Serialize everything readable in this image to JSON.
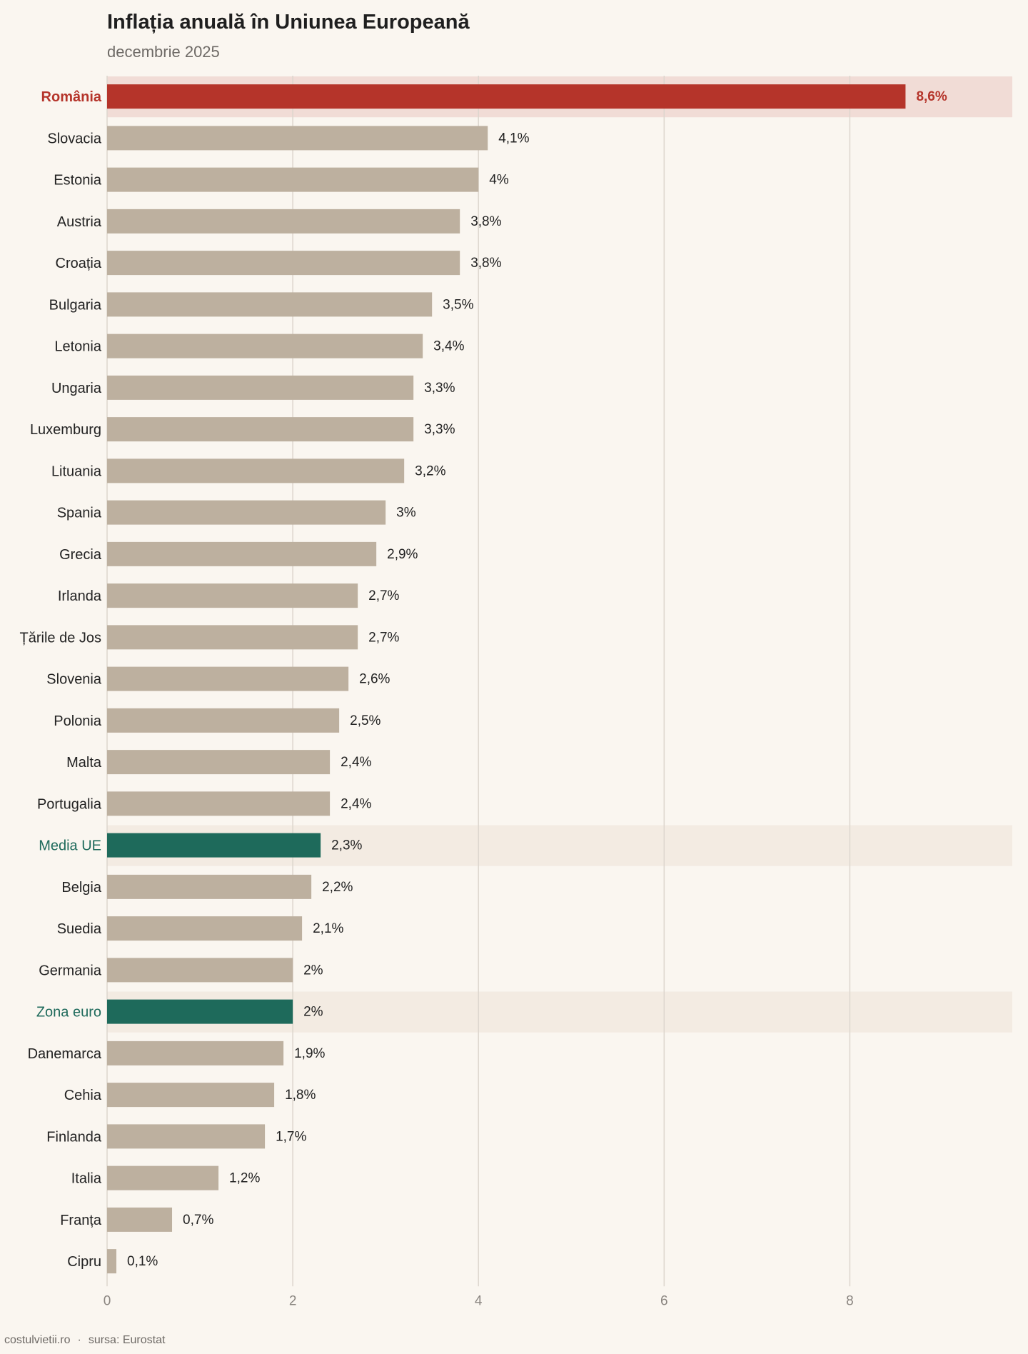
{
  "header": {
    "title": "Inflația anuală în Uniunea Europeană",
    "subtitle": "decembrie 2025"
  },
  "footer": {
    "site": "costulvietii.ro",
    "separator": "·",
    "source": "sursa: Eurostat"
  },
  "colors": {
    "background": "#faf6f0",
    "default_bar": "#bdb09f",
    "romania_bar": "#b5342a",
    "eu_bar": "#1e6a5b",
    "romania_band": "#f1dcd6",
    "eu_band": "#f3ebe2",
    "gridline": "#ddd6ce"
  },
  "chart_data": {
    "type": "bar",
    "orientation": "horizontal",
    "title": "Inflația anuală în Uniunea Europeană",
    "subtitle": "decembrie 2025",
    "xlabel": "",
    "ylabel": "",
    "xlim": [
      0,
      9.75
    ],
    "xticks": [
      0,
      2,
      4,
      6,
      8
    ],
    "xtick_labels": [
      "0",
      "2",
      "4",
      "6",
      "8"
    ],
    "grid": "vertical",
    "categories": [
      "România",
      "Slovacia",
      "Estonia",
      "Austria",
      "Croația",
      "Bulgaria",
      "Letonia",
      "Ungaria",
      "Luxemburg",
      "Lituania",
      "Spania",
      "Grecia",
      "Irlanda",
      "Țările de Jos",
      "Slovenia",
      "Polonia",
      "Malta",
      "Portugalia",
      "Media UE",
      "Belgia",
      "Suedia",
      "Germania",
      "Zona euro",
      "Danemarca",
      "Cehia",
      "Finlanda",
      "Italia",
      "Franța",
      "Cipru"
    ],
    "values": [
      8.6,
      4.1,
      4.0,
      3.8,
      3.8,
      3.5,
      3.4,
      3.3,
      3.3,
      3.2,
      3.0,
      2.9,
      2.7,
      2.7,
      2.6,
      2.5,
      2.4,
      2.4,
      2.3,
      2.2,
      2.1,
      2.0,
      2.0,
      1.9,
      1.8,
      1.7,
      1.2,
      0.7,
      0.1
    ],
    "value_labels": [
      "8,6%",
      "4,1%",
      "4%",
      "3,8%",
      "3,8%",
      "3,5%",
      "3,4%",
      "3,3%",
      "3,3%",
      "3,2%",
      "3%",
      "2,9%",
      "2,7%",
      "2,7%",
      "2,6%",
      "2,5%",
      "2,4%",
      "2,4%",
      "2,3%",
      "2,2%",
      "2,1%",
      "2%",
      "2%",
      "1,9%",
      "1,8%",
      "1,7%",
      "1,2%",
      "0,7%",
      "0,1%"
    ],
    "highlight": {
      "România": "romania",
      "Media UE": "eu",
      "Zona euro": "eu"
    }
  }
}
